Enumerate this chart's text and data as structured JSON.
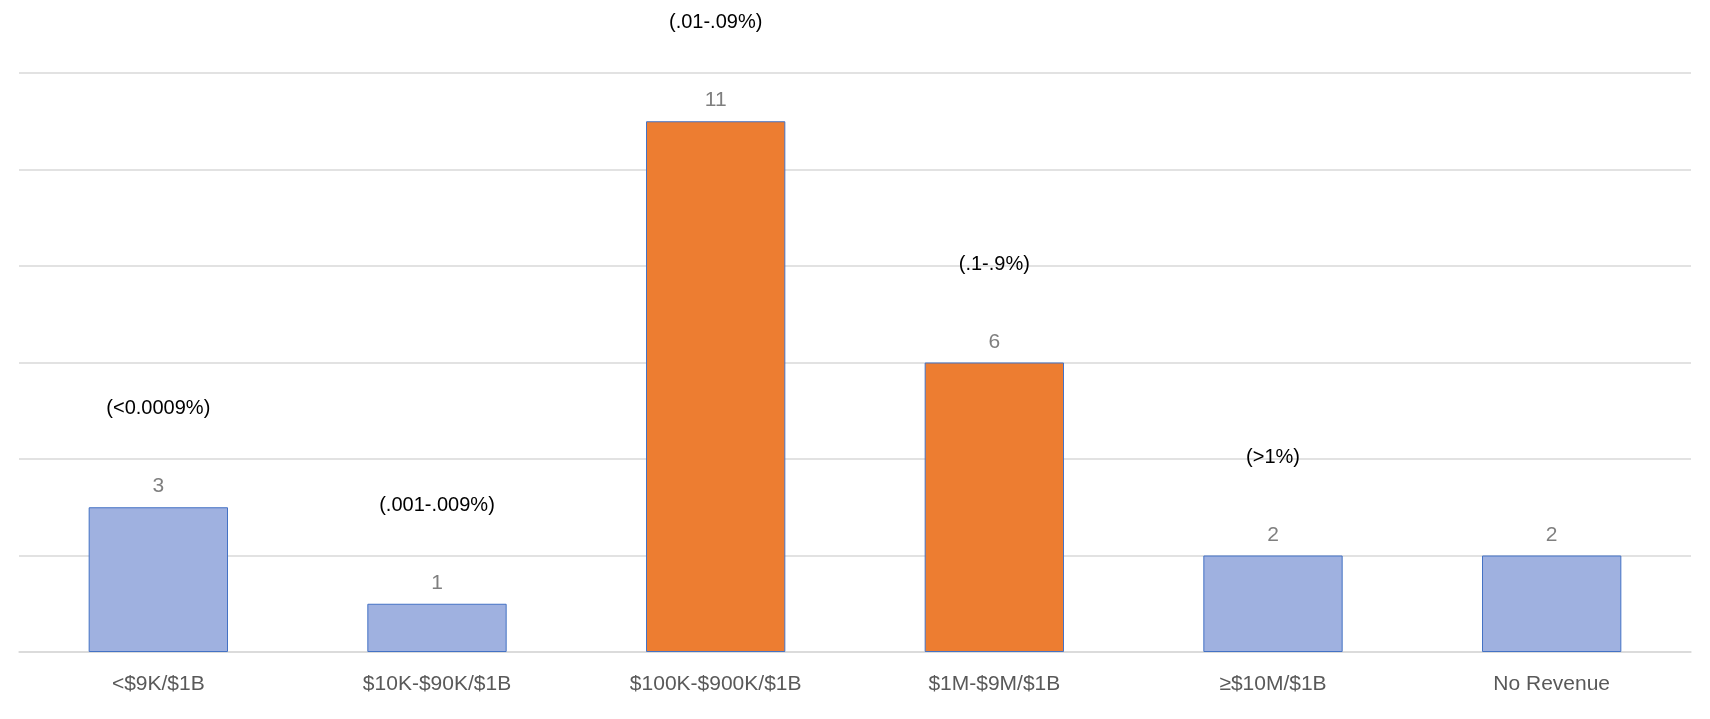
{
  "chart_data": {
    "type": "bar",
    "categories": [
      "<$9K/$1B",
      "$10K-$90K/$1B",
      "$100K-$900K/$1B",
      "$1M-$9M/$1B",
      "≥$10M/$1B",
      "No Revenue"
    ],
    "values": [
      3,
      1,
      11,
      6,
      2,
      2
    ],
    "colors": [
      "#9fb1e0",
      "#9fb1e0",
      "#ed7d31",
      "#ed7d31",
      "#9fb1e0",
      "#9fb1e0"
    ],
    "data_labels": true,
    "ylim": [
      0,
      12
    ],
    "yticks": [
      {
        "value": 0,
        "label": null
      },
      {
        "value": 2,
        "label": null
      },
      {
        "value": 4,
        "label": null
      },
      {
        "value": 6,
        "label": null
      },
      {
        "value": 8,
        "label": null
      },
      {
        "value": 10,
        "label": null
      },
      {
        "value": 12,
        "label": null
      }
    ],
    "tick_labels": "x",
    "grid": "y",
    "annotations": [
      "(<0.0009%)",
      "(.001-.009%)",
      "(.01-.09%)",
      "(.1-.9%)",
      "(>1%)"
    ]
  }
}
